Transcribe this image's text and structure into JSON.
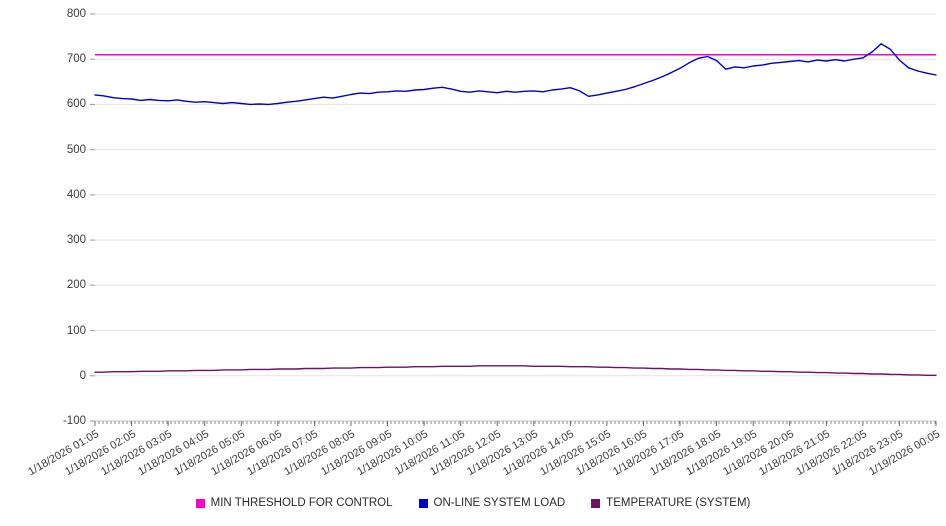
{
  "chart_data": {
    "type": "line",
    "title": "",
    "xlabel": "",
    "ylabel": "",
    "ylim": [
      -100,
      800
    ],
    "y_ticks": [
      800,
      700,
      600,
      500,
      400,
      300,
      200,
      100,
      0,
      -100
    ],
    "grid": "horizontal",
    "points_per_hour": 4,
    "x_tick_labels": [
      "1/18/2026 01:05",
      "1/18/2026 02:05",
      "1/18/2026 03:05",
      "1/18/2026 04:05",
      "1/18/2026 05:05",
      "1/18/2026 06:05",
      "1/18/2026 07:05",
      "1/18/2026 08:05",
      "1/18/2026 09:05",
      "1/18/2026 10:05",
      "1/18/2026 11:05",
      "1/18/2026 12:05",
      "1/18/2026 13:05",
      "1/18/2026 14:05",
      "1/18/2026 15:05",
      "1/18/2026 16:05",
      "1/18/2026 17:05",
      "1/18/2026 18:05",
      "1/18/2026 19:05",
      "1/18/2026 20:05",
      "1/18/2026 21:05",
      "1/18/2026 22:05",
      "1/18/2026 23:05",
      "1/19/2026 00:05"
    ],
    "threshold": {
      "name": "MIN THRESHOLD FOR CONTROL",
      "value": 710,
      "color": "#ff00cc"
    },
    "series": [
      {
        "name": "ON-LINE SYSTEM LOAD",
        "color": "#0000cc",
        "values": [
          621,
          619,
          615,
          613,
          612,
          609,
          611,
          609,
          608,
          610,
          607,
          605,
          606,
          604,
          602,
          604,
          602,
          600,
          601,
          600,
          602,
          605,
          607,
          610,
          613,
          616,
          614,
          618,
          622,
          625,
          624,
          627,
          628,
          630,
          629,
          632,
          633,
          636,
          638,
          634,
          629,
          627,
          630,
          628,
          626,
          629,
          627,
          629,
          630,
          628,
          632,
          634,
          637,
          630,
          618,
          621,
          625,
          629,
          633,
          639,
          646,
          653,
          661,
          670,
          680,
          692,
          702,
          706,
          697,
          678,
          683,
          681,
          685,
          687,
          691,
          693,
          695,
          697,
          694,
          698,
          696,
          699,
          696,
          700,
          703,
          716,
          734,
          722,
          698,
          681,
          674,
          669,
          665
        ]
      },
      {
        "name": "TEMPERATURE (SYSTEM)",
        "color": "#6e1160",
        "values": [
          8,
          8,
          9,
          9,
          9,
          10,
          10,
          10,
          11,
          11,
          11,
          12,
          12,
          12,
          13,
          13,
          13,
          14,
          14,
          14,
          15,
          15,
          15,
          16,
          16,
          16,
          17,
          17,
          17,
          18,
          18,
          18,
          19,
          19,
          19,
          20,
          20,
          20,
          21,
          21,
          21,
          21,
          22,
          22,
          22,
          22,
          22,
          22,
          21,
          21,
          21,
          21,
          20,
          20,
          20,
          19,
          19,
          18,
          18,
          17,
          17,
          16,
          16,
          15,
          15,
          14,
          14,
          13,
          13,
          12,
          12,
          11,
          11,
          10,
          10,
          9,
          9,
          8,
          8,
          7,
          7,
          6,
          6,
          5,
          5,
          4,
          4,
          3,
          3,
          2,
          2,
          1,
          1
        ]
      }
    ],
    "legend": [
      {
        "label": "MIN THRESHOLD FOR CONTROL",
        "color": "#ff00cc"
      },
      {
        "label": "ON-LINE SYSTEM LOAD",
        "color": "#0000cc"
      },
      {
        "label": "TEMPERATURE (SYSTEM)",
        "color": "#6e1160"
      }
    ],
    "legend_position": "bottom-center"
  }
}
